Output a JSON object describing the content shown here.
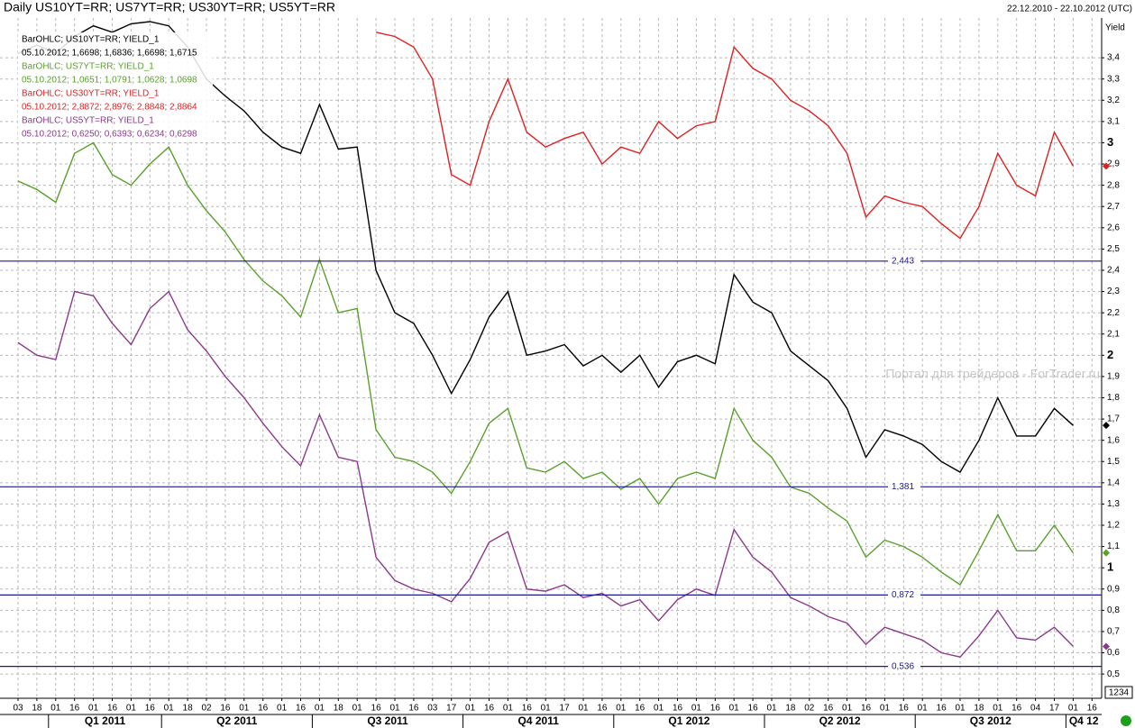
{
  "chart_data": {
    "type": "line",
    "title": "Daily US10YT=RR; US7YT=RR; US30YT=RR; US5YT=RR",
    "date_range": "22.12.2010 - 22.10.2012 (UTC)",
    "y_label": "Yield",
    "watermark": "Портал для трейдеров - ForTrader.ru",
    "corner_box": "1234",
    "categories": [
      "03",
      "18",
      "01",
      "16",
      "01",
      "16",
      "01",
      "16",
      "01",
      "18",
      "02",
      "16",
      "01",
      "16",
      "01",
      "16",
      "01",
      "18",
      "01",
      "16",
      "01",
      "16",
      "03",
      "17",
      "01",
      "16",
      "01",
      "16",
      "01",
      "17",
      "01",
      "16",
      "01",
      "16",
      "01",
      "16",
      "01",
      "16",
      "01",
      "16",
      "01",
      "18",
      "02",
      "16",
      "01",
      "16",
      "01",
      "16",
      "01",
      "16",
      "01",
      "18",
      "01",
      "16",
      "04",
      "17",
      "01",
      "16"
    ],
    "quarters": [
      "Q1 2011",
      "Q2 2011",
      "Q3 2011",
      "Q4 2011",
      "Q1 2012",
      "Q2 2012",
      "Q3 2012",
      "Q4 12"
    ],
    "ylim": [
      0.386,
      3.587
    ],
    "yticks": [
      {
        "value": 0.5,
        "label": "0,5"
      },
      {
        "value": 0.6,
        "label": "0,6"
      },
      {
        "value": 0.7,
        "label": "0,7"
      },
      {
        "value": 0.8,
        "label": "0,8"
      },
      {
        "value": 0.9,
        "label": "0,9"
      },
      1,
      {
        "value": 1.1,
        "label": "1,1"
      },
      {
        "value": 1.2,
        "label": "1,2"
      },
      {
        "value": 1.3,
        "label": "1,3"
      },
      {
        "value": 1.4,
        "label": "1,4"
      },
      {
        "value": 1.5,
        "label": "1,5"
      },
      {
        "value": 1.6,
        "label": "1,6"
      },
      {
        "value": 1.7,
        "label": "1,7"
      },
      {
        "value": 1.8,
        "label": "1,8"
      },
      {
        "value": 1.9,
        "label": "1,9"
      },
      2,
      {
        "value": 2.1,
        "label": "2,1"
      },
      {
        "value": 2.2,
        "label": "2,2"
      },
      {
        "value": 2.3,
        "label": "2,3"
      },
      {
        "value": 2.4,
        "label": "2,4"
      },
      {
        "value": 2.5,
        "label": "2,5"
      },
      {
        "value": 2.6,
        "label": "2,6"
      },
      {
        "value": 2.7,
        "label": "2,7"
      },
      {
        "value": 2.8,
        "label": "2,8"
      },
      {
        "value": 2.9,
        "label": "2,9"
      },
      3,
      {
        "value": 3.1,
        "label": "3,1"
      },
      {
        "value": 3.2,
        "label": "3,2"
      },
      {
        "value": 3.3,
        "label": "3,3"
      },
      {
        "value": 3.4,
        "label": "3,4"
      }
    ],
    "grid": true,
    "levels": [
      {
        "value": 2.443,
        "label": "2,443"
      },
      {
        "value": 1.381,
        "label": "1,381"
      },
      {
        "value": 0.872,
        "label": "0,872"
      },
      {
        "value": 0.536,
        "label": "0,536"
      }
    ],
    "level_color": "#1a1a8c",
    "series": [
      {
        "name": "BarOHLC; US10YT=RR; YIELD_1",
        "info": "05.10.2012; 1,6698; 1,6836; 1,6698; 1,6715",
        "color": "#000000",
        "values": [
          3.42,
          3.46,
          3.42,
          3.5,
          3.55,
          3.52,
          3.56,
          3.57,
          3.55,
          3.45,
          3.3,
          3.22,
          3.15,
          3.05,
          2.98,
          2.95,
          3.18,
          2.97,
          2.98,
          2.4,
          2.2,
          2.15,
          2.0,
          1.82,
          1.98,
          2.18,
          2.3,
          2.0,
          2.02,
          2.05,
          1.95,
          2.0,
          1.92,
          2.0,
          1.85,
          1.97,
          2.0,
          1.96,
          2.38,
          2.25,
          2.2,
          2.02,
          1.95,
          1.88,
          1.75,
          1.52,
          1.65,
          1.62,
          1.58,
          1.5,
          1.45,
          1.6,
          1.8,
          1.62,
          1.62,
          1.75,
          1.67,
          null
        ]
      },
      {
        "name": "BarOHLC; US7YT=RR; YIELD_1",
        "info": "05.10.2012; 1,0651; 1,0791; 1,0628; 1,0698",
        "color": "#5aa02c",
        "values": [
          2.82,
          2.78,
          2.72,
          2.95,
          3.0,
          2.85,
          2.8,
          2.9,
          2.98,
          2.8,
          2.68,
          2.58,
          2.45,
          2.35,
          2.28,
          2.18,
          2.45,
          2.2,
          2.22,
          1.65,
          1.52,
          1.5,
          1.45,
          1.35,
          1.5,
          1.68,
          1.75,
          1.47,
          1.45,
          1.5,
          1.42,
          1.45,
          1.37,
          1.42,
          1.3,
          1.42,
          1.45,
          1.42,
          1.75,
          1.6,
          1.52,
          1.38,
          1.35,
          1.28,
          1.22,
          1.05,
          1.13,
          1.1,
          1.05,
          0.98,
          0.92,
          1.08,
          1.25,
          1.08,
          1.08,
          1.2,
          1.07,
          null
        ]
      },
      {
        "name": "BarOHLC; US30YT=RR; YIELD_1",
        "info": "05.10.2012; 2,8872; 2,8976; 2,8848; 2,8864",
        "color": "#e02020",
        "values": [
          null,
          null,
          null,
          null,
          null,
          null,
          null,
          null,
          null,
          null,
          null,
          null,
          null,
          null,
          null,
          null,
          null,
          null,
          null,
          3.52,
          3.5,
          3.45,
          3.3,
          2.85,
          2.8,
          3.1,
          3.3,
          3.05,
          2.98,
          3.02,
          3.05,
          2.9,
          2.98,
          2.95,
          3.1,
          3.02,
          3.08,
          3.1,
          3.45,
          3.35,
          3.3,
          3.2,
          3.15,
          3.08,
          2.95,
          2.65,
          2.75,
          2.72,
          2.7,
          2.62,
          2.55,
          2.7,
          2.95,
          2.8,
          2.75,
          3.05,
          2.89,
          null
        ]
      },
      {
        "name": "BarOHLC; US5YT=RR; YIELD_1",
        "info": "05.10.2012; 0,6250; 0,6393; 0,6234; 0,6298",
        "color": "#8b3a8b",
        "values": [
          2.06,
          2.0,
          1.98,
          2.3,
          2.28,
          2.15,
          2.05,
          2.22,
          2.3,
          2.12,
          2.02,
          1.9,
          1.8,
          1.68,
          1.57,
          1.48,
          1.72,
          1.52,
          1.5,
          1.05,
          0.94,
          0.9,
          0.88,
          0.84,
          0.95,
          1.12,
          1.17,
          0.9,
          0.89,
          0.92,
          0.86,
          0.88,
          0.82,
          0.85,
          0.75,
          0.85,
          0.9,
          0.87,
          1.18,
          1.05,
          0.98,
          0.86,
          0.82,
          0.77,
          0.74,
          0.64,
          0.72,
          0.69,
          0.66,
          0.6,
          0.58,
          0.68,
          0.8,
          0.67,
          0.66,
          0.72,
          0.63,
          null
        ]
      }
    ]
  }
}
